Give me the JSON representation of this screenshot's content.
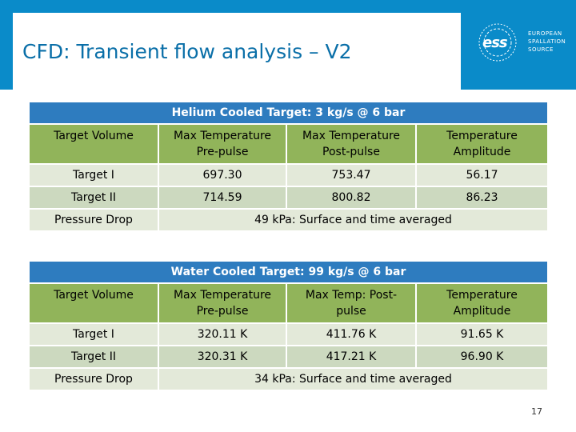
{
  "slide": {
    "title": "CFD: Transient flow analysis – V2",
    "page_number": "17",
    "logo": {
      "mark": "ess",
      "lines": [
        "EUROPEAN",
        "SPALLATION",
        "SOURCE"
      ]
    }
  },
  "colors": {
    "header_blue": "#0a8bc9",
    "caption_blue": "#2e7cbf",
    "header_green": "#91b45a",
    "row_light": "#e3e9d9",
    "row_dark": "#ccd9bf"
  },
  "helium": {
    "caption": "Helium Cooled Target: 3 kg/s @ 6 bar",
    "headers": [
      "Target Volume",
      "Max Temperature\nPre-pulse",
      "Max Temperature\nPost-pulse",
      "Temperature\nAmplitude"
    ],
    "rows": [
      [
        "Target I",
        "697.30",
        "753.47",
        "56.17"
      ],
      [
        "Target II",
        "714.59",
        "800.82",
        "86.23"
      ]
    ],
    "pressure": {
      "label": "Pressure Drop",
      "value": "49 kPa: Surface and time averaged"
    }
  },
  "water": {
    "caption": "Water Cooled Target: 99 kg/s @ 6 bar",
    "headers": [
      "Target Volume",
      "Max Temperature\nPre-pulse",
      "Max Temp: Post-\npulse",
      "Temperature\nAmplitude"
    ],
    "rows": [
      [
        "Target I",
        "320.11 K",
        "411.76 K",
        "91.65 K"
      ],
      [
        "Target II",
        "320.31 K",
        "417.21 K",
        "96.90 K"
      ]
    ],
    "pressure": {
      "label": "Pressure Drop",
      "value": "34 kPa: Surface and time averaged"
    }
  }
}
